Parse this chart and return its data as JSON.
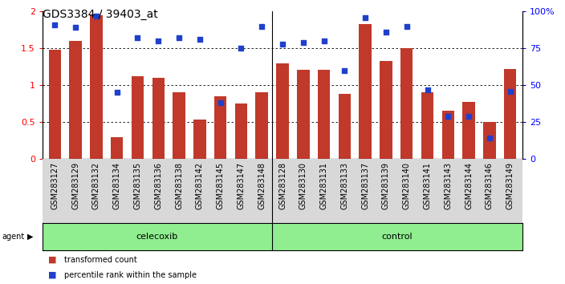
{
  "title": "GDS3384 / 39403_at",
  "samples": [
    "GSM283127",
    "GSM283129",
    "GSM283132",
    "GSM283134",
    "GSM283135",
    "GSM283136",
    "GSM283138",
    "GSM283142",
    "GSM283145",
    "GSM283147",
    "GSM283148",
    "GSM283128",
    "GSM283130",
    "GSM283131",
    "GSM283133",
    "GSM283137",
    "GSM283139",
    "GSM283140",
    "GSM283141",
    "GSM283143",
    "GSM283144",
    "GSM283146",
    "GSM283149"
  ],
  "transformed_count": [
    1.48,
    1.6,
    1.95,
    0.3,
    1.12,
    1.1,
    0.9,
    0.53,
    0.85,
    0.75,
    0.9,
    1.3,
    1.21,
    1.21,
    0.88,
    1.83,
    1.33,
    1.5,
    0.9,
    0.65,
    0.77,
    0.5,
    1.22
  ],
  "percentile_rank": [
    91,
    89,
    97,
    45,
    82,
    80,
    82,
    81,
    38,
    75,
    90,
    78,
    79,
    80,
    60,
    96,
    86,
    90,
    47,
    29,
    29,
    14,
    46
  ],
  "celecoxib_count": 11,
  "control_count": 12,
  "bar_color": "#c0392b",
  "dot_color": "#2040cc",
  "ylim_left": [
    0,
    2
  ],
  "ylim_right": [
    0,
    100
  ],
  "yticks_left": [
    0,
    0.5,
    1.0,
    1.5,
    2.0
  ],
  "yticks_right": [
    0,
    25,
    50,
    75,
    100
  ],
  "gridlines": [
    0.5,
    1.0,
    1.5
  ],
  "agent_label": "agent",
  "celecoxib_label": "celecoxib",
  "control_label": "control",
  "legend_red": "transformed count",
  "legend_blue": "percentile rank within the sample",
  "bg_agent_row": "#90ee90",
  "bg_xtick": "#d8d8d8",
  "title_fontsize": 10,
  "tick_fontsize": 7,
  "label_fontsize": 8
}
